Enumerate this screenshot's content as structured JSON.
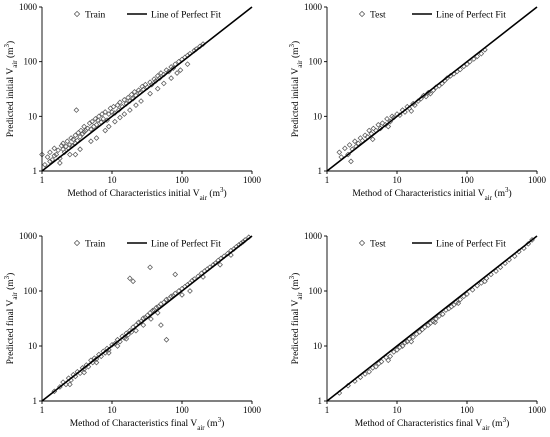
{
  "colors": {
    "axis": "#000000",
    "marker": "#5a5a5a",
    "fit_line": "#000000",
    "background": "#ffffff"
  },
  "chart_data": [
    {
      "type": "scatter",
      "xscale": "log",
      "yscale": "log",
      "xlim": [
        1,
        1000
      ],
      "ylim": [
        1,
        1000
      ],
      "xticks": [
        "1",
        "10",
        "100",
        "1000"
      ],
      "yticks": [
        "1",
        "10",
        "100",
        "1000"
      ],
      "xlabel": {
        "text": "Method of Characteristics initial V",
        "sub": "air",
        "unit": " (m",
        "sup": "3",
        "close": ")"
      },
      "ylabel": {
        "text": "Predicted initial V",
        "sub": "air",
        "unit": " (m",
        "sup": "3",
        "close": ")"
      },
      "legend": {
        "position": "top",
        "marker_label": "Train",
        "line_label": "Line of Perfect Fit"
      },
      "fit_line": {
        "name": "Line of Perfect Fit",
        "from": [
          1,
          1
        ],
        "to": [
          1000,
          1000
        ]
      },
      "series": [
        {
          "name": "Train",
          "marker": "diamond",
          "x": [
            1.0,
            1.1,
            1.2,
            1.3,
            1.3,
            1.4,
            1.5,
            1.5,
            1.6,
            1.7,
            1.8,
            1.9,
            2.0,
            2.0,
            2.1,
            2.2,
            2.3,
            2.4,
            2.5,
            2.6,
            2.7,
            2.8,
            3.0,
            3.0,
            3.1,
            3.2,
            3.3,
            3.5,
            3.6,
            3.8,
            4.0,
            4.0,
            4.2,
            4.5,
            4.8,
            5.0,
            5.2,
            5.5,
            5.8,
            6.0,
            6.3,
            6.5,
            7.0,
            7.2,
            7.5,
            8.0,
            8.5,
            9.0,
            9.5,
            10.0,
            10.5,
            11.0,
            12.0,
            12.5,
            13.0,
            14.0,
            15.0,
            16.0,
            17.0,
            18.0,
            19.0,
            20.0,
            21.0,
            22.0,
            24.0,
            25.0,
            27.0,
            28.0,
            30.0,
            32.0,
            35.0,
            37.0,
            40.0,
            42.0,
            45.0,
            48.0,
            50.0,
            55.0,
            60.0,
            65.0,
            70.0,
            75.0,
            80.0,
            90.0,
            100.0,
            110.0,
            120.0,
            130.0,
            150.0,
            160.0,
            180.0,
            200.0,
            3.0,
            3.5,
            5.0,
            6.0,
            8.0,
            9.0,
            11.0,
            13.0,
            15.0,
            18.0,
            22.0,
            26.0,
            35.0,
            45.0,
            55.0,
            70.0,
            85.0,
            95.0,
            120.0,
            1.8,
            2.5
          ],
          "y": [
            2.0,
            1.3,
            1.8,
            1.5,
            2.2,
            1.6,
            1.9,
            2.6,
            2.0,
            2.4,
            1.7,
            2.9,
            2.5,
            3.2,
            2.2,
            2.8,
            3.5,
            2.6,
            3.0,
            4.0,
            2.9,
            3.8,
            3.2,
            4.5,
            13.0,
            3.6,
            5.0,
            4.2,
            5.5,
            4.8,
            5.2,
            6.5,
            5.5,
            6.0,
            7.5,
            5.8,
            8.0,
            6.5,
            9.0,
            7.0,
            8.5,
            10.0,
            7.8,
            11.0,
            9.0,
            12.0,
            8.5,
            11.0,
            14.0,
            12.0,
            15.0,
            11.5,
            16.0,
            13.0,
            18.0,
            15.0,
            20.0,
            17.0,
            22.0,
            19.0,
            25.0,
            21.0,
            28.0,
            24.0,
            30.0,
            27.0,
            35.0,
            31.0,
            38.0,
            34.0,
            42.0,
            38.0,
            48.0,
            44.0,
            55.0,
            50.0,
            62.0,
            58.0,
            70.0,
            66.0,
            80.0,
            76.0,
            90.0,
            100.0,
            110.0,
            120.0,
            130.0,
            140.0,
            160.0,
            170.0,
            190.0,
            210.0,
            2.0,
            2.5,
            3.5,
            4.0,
            5.5,
            6.5,
            8.0,
            9.5,
            11.0,
            13.0,
            16.0,
            19.0,
            26.0,
            32.0,
            40.0,
            50.0,
            62.0,
            70.0,
            90.0,
            1.4,
            2.0
          ]
        }
      ]
    },
    {
      "type": "scatter",
      "xscale": "log",
      "yscale": "log",
      "xlim": [
        1,
        1000
      ],
      "ylim": [
        1,
        1000
      ],
      "xticks": [
        "1",
        "10",
        "100",
        "1000"
      ],
      "yticks": [
        "1",
        "10",
        "100",
        "1000"
      ],
      "xlabel": {
        "text": "Method of Characteristics initial V",
        "sub": "air",
        "unit": " (m",
        "sup": "3",
        "close": ")"
      },
      "ylabel": {
        "text": "Predicted initial V",
        "sub": "air",
        "unit": " (m",
        "sup": "3",
        "close": ")"
      },
      "legend": {
        "position": "top",
        "marker_label": "Test",
        "line_label": "Line of Perfect Fit"
      },
      "fit_line": {
        "name": "Line of Perfect Fit",
        "from": [
          1,
          1
        ],
        "to": [
          1000,
          1000
        ]
      },
      "series": [
        {
          "name": "Test",
          "marker": "diamond",
          "x": [
            1.5,
            1.6,
            1.8,
            2.0,
            2.1,
            2.3,
            2.5,
            2.6,
            2.8,
            3.0,
            3.2,
            3.5,
            3.8,
            4.0,
            4.3,
            4.6,
            5.0,
            5.4,
            5.8,
            6.2,
            6.8,
            7.2,
            8.0,
            8.5,
            9.0,
            10.0,
            11.0,
            12.0,
            13.0,
            14.0,
            15.0,
            17.0,
            18.0,
            20.0,
            22.0,
            24.0,
            26.0,
            28.0,
            30.0,
            33.0,
            36.0,
            40.0,
            44.0,
            48.0,
            52.0,
            58.0,
            65.0,
            72.0,
            80.0,
            90.0,
            100.0,
            110.0,
            125.0,
            140.0,
            160.0,
            180.0,
            2.2,
            4.5,
            7.5,
            16.0
          ],
          "y": [
            2.2,
            1.8,
            2.6,
            2.0,
            3.0,
            2.5,
            3.5,
            2.8,
            3.2,
            4.0,
            3.6,
            4.5,
            4.2,
            5.5,
            4.8,
            6.0,
            5.5,
            7.0,
            6.0,
            7.5,
            7.0,
            9.0,
            8.0,
            10.0,
            9.5,
            11.0,
            10.5,
            13.0,
            12.0,
            15.0,
            14.0,
            17.0,
            16.0,
            19.0,
            21.0,
            24.0,
            23.0,
            27.0,
            26.0,
            30.0,
            34.0,
            36.0,
            40.0,
            45.0,
            50.0,
            55.0,
            60.0,
            66.0,
            72.0,
            82.0,
            90.0,
            100.0,
            112.0,
            125.0,
            140.0,
            165.0,
            1.5,
            3.8,
            6.5,
            12.5
          ]
        }
      ]
    },
    {
      "type": "scatter",
      "xscale": "log",
      "yscale": "log",
      "xlim": [
        1,
        1000
      ],
      "ylim": [
        1,
        1000
      ],
      "xticks": [
        "1",
        "10",
        "100",
        "1000"
      ],
      "yticks": [
        "1",
        "10",
        "100",
        "1000"
      ],
      "xlabel": {
        "text": "Method of Characteristics final V",
        "sub": "air",
        "unit": " (m",
        "sup": "3",
        "close": ")"
      },
      "ylabel": {
        "text": "Predicted final V",
        "sub": "air",
        "unit": " (m",
        "sup": "3",
        "close": ")"
      },
      "legend": {
        "position": "top",
        "marker_label": "Train",
        "line_label": "Line of Perfect Fit"
      },
      "fit_line": {
        "name": "Line of Perfect Fit",
        "from": [
          1,
          1
        ],
        "to": [
          1000,
          1000
        ]
      },
      "series": [
        {
          "name": "Train",
          "marker": "diamond",
          "x": [
            1.5,
            1.8,
            2.0,
            2.2,
            2.4,
            2.6,
            2.8,
            3.0,
            3.2,
            3.5,
            3.8,
            4.0,
            4.3,
            4.6,
            5.0,
            5.3,
            5.6,
            6.0,
            6.5,
            7.0,
            7.5,
            8.0,
            8.5,
            9.0,
            10.0,
            11.0,
            12.0,
            13.0,
            14.0,
            15.0,
            16.0,
            17.0,
            18.0,
            19.0,
            20.0,
            22.0,
            24.0,
            26.0,
            28.0,
            30.0,
            32.0,
            35.0,
            38.0,
            40.0,
            43.0,
            46.0,
            50.0,
            55.0,
            60.0,
            65.0,
            70.0,
            75.0,
            80.0,
            90.0,
            100.0,
            110.0,
            120.0,
            130.0,
            140.0,
            150.0,
            170.0,
            190.0,
            210.0,
            230.0,
            250.0,
            280.0,
            300.0,
            330.0,
            360.0,
            400.0,
            450.0,
            500.0,
            550.0,
            600.0,
            650.0,
            700.0,
            750.0,
            800.0,
            900.0,
            18.0,
            20.0,
            35.0,
            50.0,
            60.0,
            80.0,
            130.0,
            2.5,
            4.0,
            6.0,
            9.0,
            12.0,
            16.0,
            22.0,
            28.0,
            36.0,
            45.0,
            100.0,
            200.0,
            350.0,
            500.0
          ],
          "y": [
            1.5,
            1.8,
            2.2,
            2.0,
            2.6,
            2.4,
            3.0,
            2.8,
            3.4,
            3.2,
            4.0,
            3.8,
            4.5,
            4.2,
            5.5,
            5.0,
            6.0,
            5.8,
            7.0,
            6.5,
            8.0,
            7.5,
            9.0,
            8.5,
            10.5,
            11.0,
            13.0,
            12.0,
            15.0,
            14.0,
            17.0,
            16.0,
            19.0,
            18.0,
            22.0,
            24.0,
            27.0,
            28.0,
            32.0,
            33.0,
            36.0,
            40.0,
            44.0,
            45.0,
            50.0,
            52.0,
            58.0,
            62.0,
            70.0,
            72.0,
            80.0,
            82.0,
            90.0,
            100.0,
            110.0,
            120.0,
            130.0,
            140.0,
            155.0,
            165.0,
            185.0,
            210.0,
            230.0,
            250.0,
            270.0,
            300.0,
            320.0,
            360.0,
            390.0,
            430.0,
            480.0,
            540.0,
            580.0,
            640.0,
            690.0,
            740.0,
            790.0,
            850.0,
            950.0,
            170.0,
            150.0,
            270.0,
            24.0,
            13.0,
            200.0,
            100.0,
            2.0,
            3.3,
            5.0,
            7.5,
            10.0,
            13.5,
            19.0,
            24.0,
            31.0,
            40.0,
            85.0,
            180.0,
            300.0,
            450.0
          ]
        }
      ]
    },
    {
      "type": "scatter",
      "xscale": "log",
      "yscale": "log",
      "xlim": [
        1,
        1000
      ],
      "ylim": [
        1,
        1000
      ],
      "xticks": [
        "1",
        "10",
        "100",
        "1000"
      ],
      "yticks": [
        "1",
        "10",
        "100",
        "1000"
      ],
      "xlabel": {
        "text": "Method of Characteristics final V",
        "sub": "air",
        "unit": " (m",
        "sup": "3",
        "close": ")"
      },
      "ylabel": {
        "text": "Predicted final V",
        "sub": "air",
        "unit": " (m",
        "sup": "3",
        "close": ")"
      },
      "legend": {
        "position": "top",
        "marker_label": "Test",
        "line_label": "Line of Perfect Fit"
      },
      "fit_line": {
        "name": "Line of Perfect Fit",
        "from": [
          1,
          1
        ],
        "to": [
          1000,
          1000
        ]
      },
      "series": [
        {
          "name": "Test",
          "marker": "diamond",
          "x": [
            1.5,
            2.0,
            2.5,
            3.0,
            3.5,
            4.0,
            4.5,
            5.0,
            5.5,
            6.0,
            7.0,
            8.0,
            9.0,
            10.0,
            11.0,
            12.0,
            13.0,
            14.0,
            15.0,
            17.0,
            19.0,
            21.0,
            23.0,
            25.0,
            28.0,
            30.0,
            33.0,
            36.0,
            40.0,
            45.0,
            50.0,
            55.0,
            60.0,
            65.0,
            70.0,
            80.0,
            90.0,
            100.0,
            120.0,
            140.0,
            160.0,
            190.0,
            220.0,
            260.0,
            300.0,
            350.0,
            400.0,
            480.0,
            550.0,
            650.0,
            750.0,
            850.0,
            7.5,
            16.0,
            35.0,
            75.0,
            180.0
          ],
          "y": [
            1.4,
            1.9,
            2.3,
            2.7,
            3.1,
            3.4,
            4.0,
            4.2,
            4.8,
            5.2,
            6.2,
            6.5,
            7.8,
            8.5,
            9.5,
            10.0,
            11.5,
            12.0,
            13.5,
            14.5,
            16.5,
            18.0,
            20.0,
            22.0,
            24.0,
            26.0,
            28.0,
            31.0,
            35.0,
            38.0,
            45.0,
            48.0,
            52.0,
            56.0,
            62.0,
            70.0,
            80.0,
            88.0,
            105.0,
            125.0,
            140.0,
            170.0,
            200.0,
            230.0,
            270.0,
            320.0,
            370.0,
            430.0,
            520.0,
            600.0,
            720.0,
            850.0,
            5.5,
            12.0,
            27.0,
            60.0,
            150.0
          ]
        }
      ]
    }
  ]
}
